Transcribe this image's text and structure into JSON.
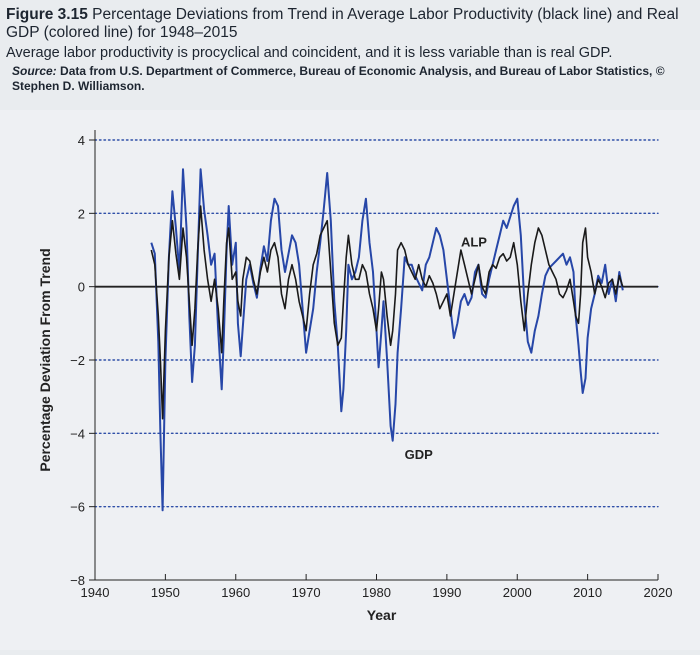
{
  "caption": {
    "figure_label": "Figure 3.15",
    "title": "Percentage Deviations from Trend in Average Labor Productivity (black line) and Real GDP (colored line) for 1948–2015",
    "subtitle": "Average labor productivity is procyclical and coincident, and it is less variable than is real GDP.",
    "source_label": "Source:",
    "source_text": "Data from U.S. Department of Commerce, Bureau of Economic Analysis, and Bureau of Labor Statistics, © Stephen D. Williamson."
  },
  "colors": {
    "gdp": "#2747a8",
    "alp": "#1a1a1a",
    "grid": "#2f4fa8",
    "axis": "#222222"
  },
  "chart_data": {
    "type": "line",
    "xlabel": "Year",
    "ylabel": "Percentage Deviation From Trend",
    "xlim": [
      1940,
      2020
    ],
    "ylim": [
      -8,
      4
    ],
    "x_ticks": [
      1940,
      1950,
      1960,
      1970,
      1980,
      1990,
      2000,
      2010,
      2020
    ],
    "y_ticks": [
      4,
      2,
      0,
      -2,
      -4,
      -6,
      -8
    ],
    "grid": "horizontal dotted",
    "annotations": [
      {
        "text": "ALP",
        "x": 1992,
        "y": 1.1
      },
      {
        "text": "GDP",
        "x": 1984,
        "y": -4.7
      }
    ],
    "series": [
      {
        "name": "GDP",
        "x": [
          1948,
          1948.5,
          1949,
          1949.3,
          1949.6,
          1950,
          1950.5,
          1951,
          1951.5,
          1952,
          1952.5,
          1953,
          1953.4,
          1953.8,
          1954.2,
          1954.6,
          1955,
          1955.5,
          1956,
          1956.5,
          1957,
          1957.5,
          1958,
          1958.3,
          1958.7,
          1959,
          1959.5,
          1960,
          1960.3,
          1960.7,
          1961,
          1961.5,
          1962,
          1962.5,
          1963,
          1963.5,
          1964,
          1964.5,
          1965,
          1965.5,
          1966,
          1966.5,
          1967,
          1967.5,
          1968,
          1968.5,
          1969,
          1969.5,
          1970,
          1970.5,
          1971,
          1971.5,
          1972,
          1972.5,
          1973,
          1973.5,
          1974,
          1974.5,
          1975,
          1975.3,
          1975.7,
          1976,
          1976.5,
          1977,
          1977.5,
          1978,
          1978.5,
          1979,
          1979.5,
          1980,
          1980.3,
          1980.7,
          1981,
          1981.5,
          1982,
          1982.3,
          1982.7,
          1983,
          1983.5,
          1984,
          1984.5,
          1985,
          1985.5,
          1986,
          1986.5,
          1987,
          1987.5,
          1988,
          1988.5,
          1989,
          1989.5,
          1990,
          1990.5,
          1991,
          1991.5,
          1992,
          1992.5,
          1993,
          1993.5,
          1994,
          1994.5,
          1995,
          1995.5,
          1996,
          1996.5,
          1997,
          1997.5,
          1998,
          1998.5,
          1999,
          1999.5,
          2000,
          2000.5,
          2001,
          2001.5,
          2002,
          2002.5,
          2003,
          2003.5,
          2004,
          2004.5,
          2005,
          2005.5,
          2006,
          2006.5,
          2007,
          2007.5,
          2008,
          2008.3,
          2008.7,
          2009,
          2009.3,
          2009.7,
          2010,
          2010.5,
          2011,
          2011.5,
          2012,
          2012.5,
          2013,
          2013.5,
          2014,
          2014.5,
          2015
        ],
        "values": [
          1.2,
          0.9,
          -1.5,
          -4.0,
          -6.1,
          -2.0,
          0.8,
          2.6,
          1.6,
          0.4,
          3.2,
          1.6,
          -0.8,
          -2.6,
          -1.6,
          0.8,
          3.2,
          2.1,
          1.4,
          0.6,
          0.9,
          -1.2,
          -2.8,
          -1.4,
          1.0,
          2.2,
          0.6,
          1.2,
          -1.0,
          -1.9,
          -1.1,
          0.2,
          0.6,
          0.1,
          -0.3,
          0.5,
          1.1,
          0.7,
          1.8,
          2.4,
          2.2,
          1.0,
          0.4,
          0.9,
          1.4,
          1.2,
          0.6,
          -0.6,
          -1.8,
          -1.2,
          -0.6,
          0.4,
          1.2,
          2.1,
          3.1,
          1.8,
          -0.4,
          -1.6,
          -3.4,
          -2.8,
          -1.2,
          0.6,
          0.2,
          0.4,
          0.8,
          1.8,
          2.4,
          1.2,
          0.4,
          -1.2,
          -2.2,
          -1.2,
          -0.4,
          -2.0,
          -3.8,
          -4.2,
          -3.2,
          -1.8,
          -0.6,
          0.8,
          0.6,
          0.6,
          0.3,
          0.1,
          -0.1,
          0.6,
          0.8,
          1.2,
          1.6,
          1.4,
          1.0,
          0.2,
          -0.6,
          -1.4,
          -1.0,
          -0.4,
          -0.2,
          -0.5,
          -0.3,
          0.4,
          0.6,
          -0.2,
          -0.3,
          0.2,
          0.6,
          1.0,
          1.4,
          1.8,
          1.6,
          1.9,
          2.2,
          2.4,
          1.4,
          -0.4,
          -1.5,
          -1.8,
          -1.2,
          -0.8,
          -0.2,
          0.3,
          0.5,
          0.6,
          0.7,
          0.8,
          0.9,
          0.6,
          0.8,
          0.4,
          -0.8,
          -1.6,
          -2.3,
          -2.9,
          -2.5,
          -1.4,
          -0.6,
          -0.2,
          0.3,
          0.1,
          0.6,
          -0.2,
          0.2,
          -0.4,
          0.4,
          -0.1
        ]
      },
      {
        "name": "ALP",
        "x": [
          1948,
          1948.5,
          1949,
          1949.3,
          1949.6,
          1950,
          1950.5,
          1951,
          1951.5,
          1952,
          1952.5,
          1953,
          1953.4,
          1953.8,
          1954.2,
          1954.6,
          1955,
          1955.5,
          1956,
          1956.5,
          1957,
          1957.5,
          1958,
          1958.3,
          1958.7,
          1959,
          1959.5,
          1960,
          1960.3,
          1960.7,
          1961,
          1961.5,
          1962,
          1962.5,
          1963,
          1963.5,
          1964,
          1964.5,
          1965,
          1965.5,
          1966,
          1966.5,
          1967,
          1967.5,
          1968,
          1968.5,
          1969,
          1969.5,
          1970,
          1970.5,
          1971,
          1971.5,
          1972,
          1972.5,
          1973,
          1973.5,
          1974,
          1974.5,
          1975,
          1975.3,
          1975.7,
          1976,
          1976.5,
          1977,
          1977.5,
          1978,
          1978.5,
          1979,
          1979.5,
          1980,
          1980.3,
          1980.7,
          1981,
          1981.5,
          1982,
          1982.3,
          1982.7,
          1983,
          1983.5,
          1984,
          1984.5,
          1985,
          1985.5,
          1986,
          1986.5,
          1987,
          1987.5,
          1988,
          1988.5,
          1989,
          1989.5,
          1990,
          1990.5,
          1991,
          1991.5,
          1992,
          1992.5,
          1993,
          1993.5,
          1994,
          1994.5,
          1995,
          1995.5,
          1996,
          1996.5,
          1997,
          1997.5,
          1998,
          1998.5,
          1999,
          1999.5,
          2000,
          2000.5,
          2001,
          2001.5,
          2002,
          2002.5,
          2003,
          2003.5,
          2004,
          2004.5,
          2005,
          2005.5,
          2006,
          2006.5,
          2007,
          2007.5,
          2008,
          2008.3,
          2008.7,
          2009,
          2009.3,
          2009.7,
          2010,
          2010.5,
          2011,
          2011.5,
          2012,
          2012.5,
          2013,
          2013.5,
          2014,
          2014.5,
          2015
        ],
        "values": [
          1.0,
          0.6,
          -0.8,
          -2.0,
          -3.6,
          -1.2,
          0.8,
          1.8,
          0.9,
          0.2,
          1.6,
          0.8,
          -0.4,
          -1.6,
          -0.6,
          1.0,
          2.2,
          1.0,
          0.2,
          -0.4,
          0.2,
          -0.6,
          -1.8,
          -0.4,
          1.2,
          1.6,
          0.2,
          0.4,
          -0.4,
          -0.8,
          0.2,
          0.8,
          0.7,
          0.2,
          -0.2,
          0.4,
          0.8,
          0.4,
          1.0,
          1.2,
          0.8,
          -0.2,
          -0.6,
          0.2,
          0.6,
          0.2,
          -0.4,
          -0.8,
          -1.2,
          -0.2,
          0.6,
          0.9,
          1.4,
          1.6,
          1.8,
          0.4,
          -1.0,
          -1.6,
          -1.4,
          -0.4,
          0.8,
          1.4,
          0.6,
          0.2,
          0.2,
          0.6,
          0.4,
          -0.2,
          -0.6,
          -1.2,
          -0.6,
          0.4,
          0.2,
          -0.8,
          -1.6,
          -1.2,
          -0.2,
          1.0,
          1.2,
          1.0,
          0.6,
          0.4,
          0.2,
          0.6,
          0.2,
          0.0,
          0.3,
          0.1,
          -0.2,
          -0.6,
          -0.4,
          -0.2,
          -0.8,
          -0.2,
          0.4,
          1.0,
          0.6,
          0.2,
          -0.2,
          0.2,
          0.6,
          0.0,
          -0.2,
          0.4,
          0.6,
          0.5,
          0.8,
          0.9,
          0.7,
          0.8,
          1.2,
          0.6,
          -0.4,
          -1.2,
          -0.2,
          0.6,
          1.2,
          1.6,
          1.4,
          1.0,
          0.6,
          0.4,
          0.2,
          -0.2,
          -0.3,
          -0.1,
          0.2,
          -0.4,
          -0.8,
          -1.0,
          -0.2,
          1.2,
          1.6,
          0.8,
          0.4,
          -0.2,
          0.2,
          0.0,
          -0.3,
          0.1,
          0.2,
          -0.2,
          0.3,
          0.0
        ]
      }
    ]
  }
}
